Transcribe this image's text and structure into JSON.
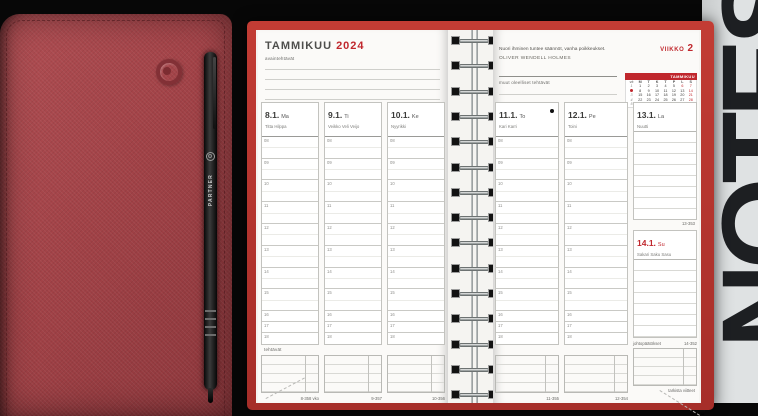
{
  "product": {
    "pen_brand": "PARTNER",
    "back_cover_text": "NOTES"
  },
  "left_page": {
    "month": "TAMMIKUU",
    "year": "2024",
    "key_tasks_label": "avaintehtävät",
    "tasks_label": "tehtävät",
    "hours": [
      "08",
      "09",
      "10",
      "11",
      "12",
      "13",
      "14",
      "15",
      "16",
      "17",
      "18"
    ],
    "days": [
      {
        "date": "8.1.",
        "weekday": "Ma",
        "name_days": "Titta Hilppa",
        "day_counter": "8-358 vko"
      },
      {
        "date": "9.1.",
        "weekday": "Ti",
        "name_days": "Veikko Veli Veijo",
        "day_counter": "9-357"
      },
      {
        "date": "10.1.",
        "weekday": "Ke",
        "name_days": "Nyyrikki",
        "day_counter": "10-356"
      }
    ]
  },
  "right_page": {
    "week_label": "VIIKKO",
    "week_number": "2",
    "quote_line": "Nuori ihminen tuntee säännöt, vanha poikkeukset.",
    "quote_author": "OLIVER WENDELL HOLMES",
    "other_tasks_label": "muut oleelliset tehtävät",
    "mini_calendar": {
      "title": "TAMMIKUU",
      "col_headers": [
        "vk",
        "M",
        "T",
        "K",
        "T",
        "P",
        "L",
        "S"
      ],
      "weeks": [
        {
          "wk": "1",
          "current": false,
          "days": [
            "1",
            "2",
            "3",
            "4",
            "5",
            "6",
            "7"
          ],
          "red_days": [
            "6",
            "7"
          ]
        },
        {
          "wk": "2",
          "current": true,
          "days": [
            "8",
            "9",
            "10",
            "11",
            "12",
            "13",
            "14"
          ],
          "red_days": [
            "14"
          ]
        },
        {
          "wk": "3",
          "current": false,
          "days": [
            "15",
            "16",
            "17",
            "18",
            "19",
            "20",
            "21"
          ],
          "red_days": [
            "21"
          ]
        },
        {
          "wk": "4",
          "current": false,
          "days": [
            "22",
            "23",
            "24",
            "25",
            "26",
            "27",
            "28"
          ],
          "red_days": [
            "28"
          ]
        },
        {
          "wk": "5",
          "current": false,
          "days": [
            "29",
            "30",
            "31"
          ],
          "red_days": []
        }
      ]
    },
    "hours": [
      "08",
      "09",
      "10",
      "11",
      "12",
      "13",
      "14",
      "15",
      "16",
      "17",
      "18"
    ],
    "days": [
      {
        "date": "11.1.",
        "weekday": "To",
        "name_days": "Kari Karri",
        "day_counter": "11-355",
        "moon": "new-moon"
      },
      {
        "date": "12.1.",
        "weekday": "Pe",
        "name_days": "Toini",
        "day_counter": "12-354"
      }
    ],
    "saturday": {
      "date": "13.1.",
      "weekday": "La",
      "name_days": "Nuutti",
      "day_counter": "13-353"
    },
    "sunday": {
      "date": "14.1.",
      "weekday": "Su",
      "name_days": "Sakari Saku Sasu",
      "day_counter": "14-352",
      "conclusions_label": "johtopäätökset",
      "corner_note": "tarkista viitteet"
    }
  },
  "colors": {
    "cover_red": "#a24247",
    "trim_red": "#b5332e",
    "accent_red": "#c0272d",
    "page_white": "#fbfaf8",
    "notes_panel_gray": "#d8dbdc",
    "notes_letters": "#1d1f22"
  }
}
